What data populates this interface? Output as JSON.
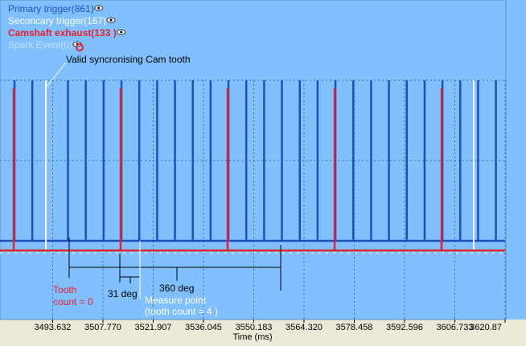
{
  "chart_data": {
    "type": "trigger-log",
    "x_label": "Time (ms)",
    "xlim": [
      3479.494,
      3620.87
    ],
    "xticks": [
      3493.632,
      {
        "value": 3507.77,
        "label": "3507.770"
      },
      3521.907,
      3536.045,
      3550.183,
      {
        "value": 3564.32,
        "label": "3564.320"
      },
      3578.458,
      3592.596,
      3606.733,
      3620.87
    ],
    "grid": true,
    "series": [
      {
        "name": "Primary trigger(861)",
        "color": "#1f4fbf",
        "x": [
          3482.89,
          3487.9,
          3497.93,
          3502.95,
          3507.96,
          3512.98,
          3517.99,
          3523.01,
          3528.02,
          3533.04,
          3538.05,
          3543.07,
          3548.08,
          3553.1,
          3558.11,
          3563.13,
          3568.14,
          3573.16,
          3578.17,
          3583.19,
          3588.2,
          3593.22,
          3598.23,
          3603.25,
          3608.26,
          3613.28,
          3618.29
        ]
      },
      {
        "name": "Seconcary trigger(167)",
        "color": "#ffffff",
        "x": [
          3491.71,
          3612.05
        ]
      },
      {
        "name": "Camshaft exhaust(133 )",
        "color": "#e8202a",
        "x": [
          3482.66,
          3512.75,
          3542.83,
          3572.92,
          3603.0
        ]
      },
      {
        "name": "Spark Event(0)",
        "color": "#c4e0ff",
        "x": []
      }
    ],
    "annotations": {
      "sync": "Valid syncronising Cam tooth",
      "tooth_count": [
        "Tooth",
        "count = 0"
      ],
      "deg31": "31 deg",
      "deg360": "360 deg",
      "measure": [
        "Measure point",
        "(tooth count = 4 )"
      ]
    }
  }
}
